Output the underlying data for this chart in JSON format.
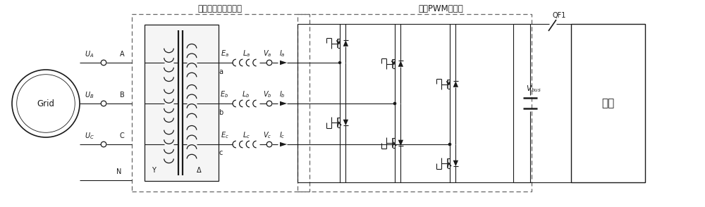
{
  "title_left": "带副边漏感的变压器",
  "title_right": "三相PWM整流器",
  "label_grid": "Grid",
  "label_load": "负载",
  "label_QF1": "QF1",
  "bg_color": "#ffffff",
  "line_color": "#1a1a1a",
  "dashed_color": "#666666"
}
